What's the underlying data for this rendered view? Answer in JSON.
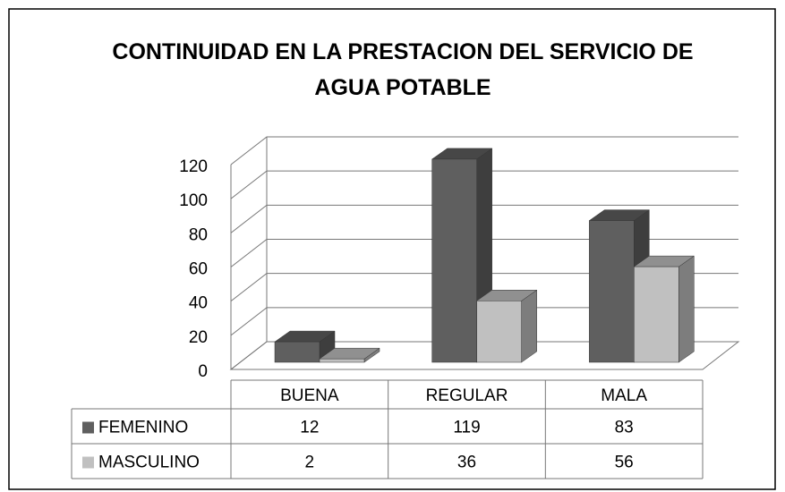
{
  "chart_data": {
    "type": "bar3d",
    "title": "CONTINUIDAD EN LA PRESTACION DEL SERVICIO DE AGUA POTABLE",
    "categories": [
      "BUENA",
      "REGULAR",
      "MALA"
    ],
    "series": [
      {
        "name": "FEMENINO",
        "color": "#5f5f5f",
        "values": [
          12,
          119,
          83
        ]
      },
      {
        "name": "MASCULINO",
        "color": "#c0c0c0",
        "values": [
          2,
          36,
          56
        ]
      }
    ],
    "ylim": [
      0,
      120
    ],
    "yticks": [
      0,
      20,
      40,
      60,
      80,
      100,
      120
    ],
    "grid": true
  }
}
